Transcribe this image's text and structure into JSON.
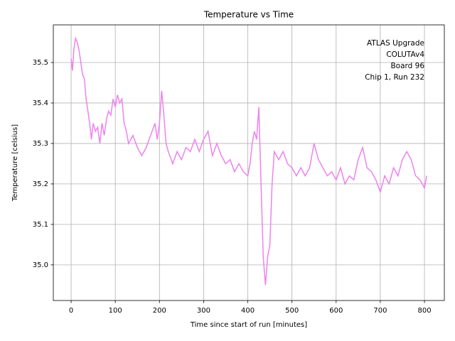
{
  "chart_data": {
    "type": "line",
    "title": "Temperature vs Time",
    "xlabel": "Time since start of run [minutes]",
    "ylabel": "Temperature [celsius]",
    "annotation": [
      "ATLAS Upgrade",
      "COLUTAv4",
      "Board 96",
      "Chip 1, Run 232"
    ],
    "color": "#ee82ee",
    "grid": true,
    "xlim": [
      -40.3,
      845
    ],
    "ylim": [
      34.912,
      35.593
    ],
    "xticks": [
      0,
      100,
      200,
      300,
      400,
      500,
      600,
      700,
      800
    ],
    "yticks": [
      {
        "value": 35,
        "label": "35.0"
      },
      35.1,
      35.2,
      35.3,
      35.4,
      35.5
    ],
    "x": [
      0,
      3,
      6,
      10,
      14,
      18,
      22,
      26,
      30,
      34,
      38,
      42,
      46,
      50,
      55,
      60,
      65,
      70,
      75,
      80,
      85,
      90,
      95,
      100,
      105,
      110,
      115,
      120,
      125,
      130,
      140,
      150,
      160,
      170,
      180,
      190,
      195,
      200,
      205,
      210,
      215,
      220,
      230,
      240,
      250,
      260,
      270,
      280,
      290,
      300,
      310,
      320,
      330,
      340,
      350,
      360,
      370,
      380,
      390,
      400,
      405,
      410,
      415,
      420,
      425,
      430,
      435,
      440,
      445,
      450,
      455,
      460,
      470,
      480,
      490,
      500,
      510,
      520,
      530,
      540,
      550,
      560,
      570,
      580,
      590,
      600,
      610,
      620,
      630,
      640,
      650,
      660,
      670,
      680,
      690,
      700,
      710,
      720,
      730,
      740,
      750,
      760,
      770,
      780,
      790,
      800,
      805
    ],
    "values": [
      35.51,
      35.48,
      35.53,
      35.56,
      35.55,
      35.53,
      35.5,
      35.47,
      35.46,
      35.41,
      35.38,
      35.35,
      35.31,
      35.35,
      35.33,
      35.34,
      35.3,
      35.35,
      35.32,
      35.36,
      35.38,
      35.37,
      35.41,
      35.39,
      35.42,
      35.4,
      35.41,
      35.35,
      35.33,
      35.3,
      35.32,
      35.29,
      35.27,
      35.29,
      35.32,
      35.35,
      35.31,
      35.35,
      35.43,
      35.37,
      35.3,
      35.28,
      35.25,
      35.28,
      35.26,
      35.29,
      35.28,
      35.31,
      35.28,
      35.31,
      35.33,
      35.27,
      35.3,
      35.27,
      35.25,
      35.26,
      35.23,
      35.25,
      35.23,
      35.22,
      35.25,
      35.3,
      35.33,
      35.31,
      35.39,
      35.2,
      35.02,
      34.95,
      35.02,
      35.05,
      35.2,
      35.28,
      35.26,
      35.28,
      35.25,
      35.24,
      35.22,
      35.24,
      35.22,
      35.24,
      35.3,
      35.26,
      35.24,
      35.22,
      35.23,
      35.21,
      35.24,
      35.2,
      35.22,
      35.21,
      35.26,
      35.29,
      35.24,
      35.23,
      35.21,
      35.18,
      35.22,
      35.2,
      35.24,
      35.22,
      35.26,
      35.28,
      35.26,
      35.22,
      35.21,
      35.19,
      35.22
    ]
  }
}
